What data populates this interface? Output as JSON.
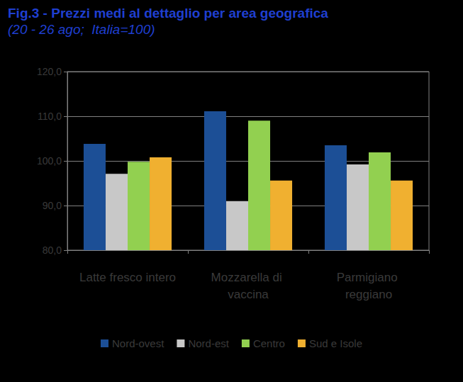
{
  "chart_data": {
    "type": "bar",
    "title": "Fig.3 - Prezzi medi al dettaglio per area geografica",
    "subtitle": "(20 - 26 ago;  Italia=100)",
    "categories": [
      "Latte fresco intero",
      "Mozzarella di vaccina",
      "Parmigiano reggiano"
    ],
    "series": [
      {
        "name": "Nord-ovest",
        "color": "#1c4f96",
        "values": [
          103.8,
          111.1,
          103.5
        ]
      },
      {
        "name": "Nord-est",
        "color": "#c8c8c8",
        "values": [
          97.1,
          91.0,
          99.2
        ]
      },
      {
        "name": "Centro",
        "color": "#92d050",
        "values": [
          99.8,
          109.0,
          101.9
        ]
      },
      {
        "name": "Sud e Isole",
        "color": "#f0b030",
        "values": [
          100.8,
          95.6,
          95.6
        ]
      }
    ],
    "ylim": [
      80,
      120
    ],
    "yticks": [
      {
        "value": 80,
        "label": "80,0"
      },
      {
        "value": 90,
        "label": "90,0"
      },
      {
        "value": 100,
        "label": "100,0"
      },
      {
        "value": 110,
        "label": "110,0"
      },
      {
        "value": 120,
        "label": "120,0"
      }
    ],
    "grid": true,
    "legend": "bottom"
  }
}
